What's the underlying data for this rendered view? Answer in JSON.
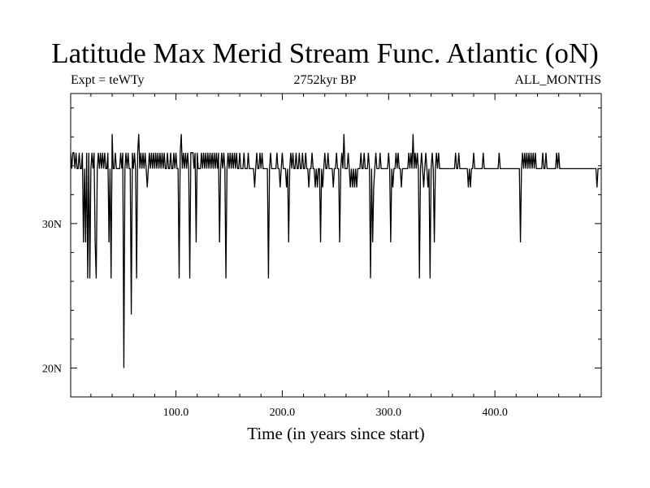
{
  "chart_data": {
    "type": "line",
    "title": "Latitude Max Merid Stream Func. Atlantic (oN)",
    "subtitle_left": "Expt = teWTy",
    "subtitle_center": "2752kyr BP",
    "subtitle_right": "ALL_MONTHS",
    "xlabel": "Time (in years since start)",
    "ylabel": "",
    "xlim": [
      1,
      500
    ],
    "ylim": [
      18,
      39
    ],
    "x_ticks": [
      100,
      200,
      300,
      400
    ],
    "x_tick_labels": [
      "100.0",
      "200.0",
      "300.0",
      "400.0"
    ],
    "y_ticks": [
      20,
      30
    ],
    "y_tick_labels": [
      "20N",
      "30N"
    ],
    "x_minor_step": 20,
    "y_minor_step": 2,
    "base_value": 33.8,
    "series": [
      {
        "name": "Latitude Max Merid Stream Func. Atlantic",
        "excursions": [
          [
            1,
            34.9
          ],
          [
            3,
            34.9
          ],
          [
            4,
            34.9
          ],
          [
            6,
            34.9
          ],
          [
            9,
            34.9
          ],
          [
            12,
            34.9
          ],
          [
            13,
            28.7
          ],
          [
            15,
            28.7
          ],
          [
            16,
            34.9
          ],
          [
            17,
            26.2
          ],
          [
            18,
            34.9
          ],
          [
            19,
            26.2
          ],
          [
            21,
            34.9
          ],
          [
            23,
            34.9
          ],
          [
            24,
            28.7
          ],
          [
            25,
            26.2
          ],
          [
            27,
            34.9
          ],
          [
            29,
            34.9
          ],
          [
            31,
            34.9
          ],
          [
            33,
            34.9
          ],
          [
            36,
            34.9
          ],
          [
            37,
            28.7
          ],
          [
            39,
            26.2
          ],
          [
            40,
            36.2
          ],
          [
            43,
            34.9
          ],
          [
            45,
            33.8
          ],
          [
            48,
            34.9
          ],
          [
            50,
            34.9
          ],
          [
            51,
            20.0
          ],
          [
            53,
            34.9
          ],
          [
            55,
            34.9
          ],
          [
            57,
            33.8
          ],
          [
            58,
            23.7
          ],
          [
            59,
            34.9
          ],
          [
            61,
            34.9
          ],
          [
            62,
            33.8
          ],
          [
            63,
            26.2
          ],
          [
            64,
            34.9
          ],
          [
            65,
            36.2
          ],
          [
            67,
            34.9
          ],
          [
            69,
            34.9
          ],
          [
            71,
            34.9
          ],
          [
            72,
            33.8
          ],
          [
            73,
            32.5
          ],
          [
            75,
            34.9
          ],
          [
            77,
            34.9
          ],
          [
            78,
            33.8
          ],
          [
            79,
            34.9
          ],
          [
            80,
            33.8
          ],
          [
            81,
            34.9
          ],
          [
            82,
            33.8
          ],
          [
            83,
            34.9
          ],
          [
            85,
            34.9
          ],
          [
            86,
            33.8
          ],
          [
            87,
            34.9
          ],
          [
            89,
            34.9
          ],
          [
            90,
            33.8
          ],
          [
            92,
            34.9
          ],
          [
            95,
            34.9
          ],
          [
            98,
            34.9
          ],
          [
            100,
            34.9
          ],
          [
            103,
            26.2
          ],
          [
            104,
            34.9
          ],
          [
            105,
            36.2
          ],
          [
            107,
            34.9
          ],
          [
            109,
            34.9
          ],
          [
            111,
            34.9
          ],
          [
            113,
            26.2
          ],
          [
            114,
            34.9
          ],
          [
            115,
            34.9
          ],
          [
            116,
            34.9
          ],
          [
            118,
            34.9
          ],
          [
            119,
            28.7
          ],
          [
            120,
            34.9
          ],
          [
            122,
            33.8
          ],
          [
            124,
            34.9
          ],
          [
            126,
            34.9
          ],
          [
            128,
            34.9
          ],
          [
            130,
            34.9
          ],
          [
            132,
            34.9
          ],
          [
            134,
            34.9
          ],
          [
            135,
            33.8
          ],
          [
            136,
            34.9
          ],
          [
            138,
            34.9
          ],
          [
            140,
            34.9
          ],
          [
            141,
            28.7
          ],
          [
            143,
            34.9
          ],
          [
            145,
            34.9
          ],
          [
            147,
            26.2
          ],
          [
            149,
            34.9
          ],
          [
            151,
            34.9
          ],
          [
            153,
            34.9
          ],
          [
            155,
            34.9
          ],
          [
            157,
            34.9
          ],
          [
            160,
            34.9
          ],
          [
            164,
            34.9
          ],
          [
            168,
            34.9
          ],
          [
            174,
            32.5
          ],
          [
            176,
            34.9
          ],
          [
            179,
            34.9
          ],
          [
            181,
            34.9
          ],
          [
            187,
            26.2
          ],
          [
            189,
            34.9
          ],
          [
            195,
            34.9
          ],
          [
            198,
            32.5
          ],
          [
            200,
            34.9
          ],
          [
            204,
            32.5
          ],
          [
            206,
            28.7
          ],
          [
            208,
            34.9
          ],
          [
            210,
            34.9
          ],
          [
            213,
            34.9
          ],
          [
            216,
            34.9
          ],
          [
            219,
            34.9
          ],
          [
            222,
            34.9
          ],
          [
            225,
            32.5
          ],
          [
            228,
            34.9
          ],
          [
            231,
            32.5
          ],
          [
            233,
            32.5
          ],
          [
            236,
            28.7
          ],
          [
            238,
            32.5
          ],
          [
            240,
            34.9
          ],
          [
            243,
            34.9
          ],
          [
            248,
            32.5
          ],
          [
            251,
            34.9
          ],
          [
            254,
            28.7
          ],
          [
            256,
            34.9
          ],
          [
            258,
            36.2
          ],
          [
            260,
            33.8
          ],
          [
            262,
            34.9
          ],
          [
            264,
            32.5
          ],
          [
            266,
            32.5
          ],
          [
            268,
            32.5
          ],
          [
            270,
            32.5
          ],
          [
            274,
            34.9
          ],
          [
            277,
            34.9
          ],
          [
            281,
            34.9
          ],
          [
            283,
            26.2
          ],
          [
            285,
            28.7
          ],
          [
            286,
            32.5
          ],
          [
            288,
            34.9
          ],
          [
            292,
            34.9
          ],
          [
            300,
            34.9
          ],
          [
            302,
            28.7
          ],
          [
            304,
            32.5
          ],
          [
            307,
            34.9
          ],
          [
            309,
            34.9
          ],
          [
            312,
            32.5
          ],
          [
            319,
            34.9
          ],
          [
            321,
            34.9
          ],
          [
            323,
            36.2
          ],
          [
            325,
            34.9
          ],
          [
            327,
            34.9
          ],
          [
            329,
            26.2
          ],
          [
            331,
            34.9
          ],
          [
            333,
            32.5
          ],
          [
            335,
            34.9
          ],
          [
            337,
            32.5
          ],
          [
            339,
            26.2
          ],
          [
            341,
            34.9
          ],
          [
            343,
            28.7
          ],
          [
            345,
            34.9
          ],
          [
            347,
            34.9
          ],
          [
            363,
            34.9
          ],
          [
            366,
            34.9
          ],
          [
            375,
            32.5
          ],
          [
            377,
            32.5
          ],
          [
            380,
            34.9
          ],
          [
            389,
            34.9
          ],
          [
            404,
            34.9
          ],
          [
            424,
            28.7
          ],
          [
            426,
            34.9
          ],
          [
            428,
            34.9
          ],
          [
            430,
            34.9
          ],
          [
            432,
            34.9
          ],
          [
            434,
            34.9
          ],
          [
            436,
            34.9
          ],
          [
            438,
            34.9
          ],
          [
            445,
            34.9
          ],
          [
            448,
            34.9
          ],
          [
            458,
            34.9
          ],
          [
            460,
            34.9
          ],
          [
            496,
            32.5
          ],
          [
            497,
            33.8
          ]
        ]
      }
    ]
  }
}
